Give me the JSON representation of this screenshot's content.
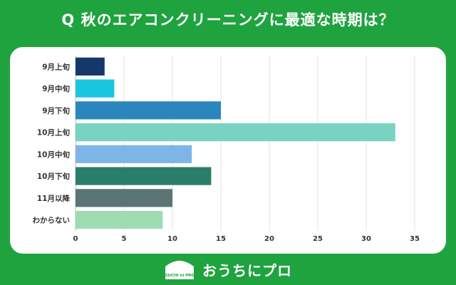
{
  "header": {
    "title": "Q 秋のエアコンクリーニングに最適な時期は？"
  },
  "chart_data": {
    "type": "bar",
    "orientation": "horizontal",
    "categories": [
      "9月上旬",
      "9月中旬",
      "9月下旬",
      "10月上旬",
      "10月中旬",
      "10月下旬",
      "11月以降",
      "わからない"
    ],
    "values": [
      3,
      4,
      15,
      33,
      12,
      14,
      10,
      9
    ],
    "bar_colors": [
      "#15386b",
      "#19c6e0",
      "#2b86bd",
      "#7ad3c2",
      "#7db5e6",
      "#2a7d6b",
      "#5a7574",
      "#a0dcb2"
    ],
    "xticks": [
      "0",
      "5",
      "10",
      "15",
      "20",
      "25",
      "30",
      "35"
    ],
    "xlim": [
      0,
      35
    ],
    "grid": true,
    "legend": "none"
  },
  "footer": {
    "logo_text": "OUCHI ni PRO",
    "brand_name": "おうちにプロ"
  }
}
